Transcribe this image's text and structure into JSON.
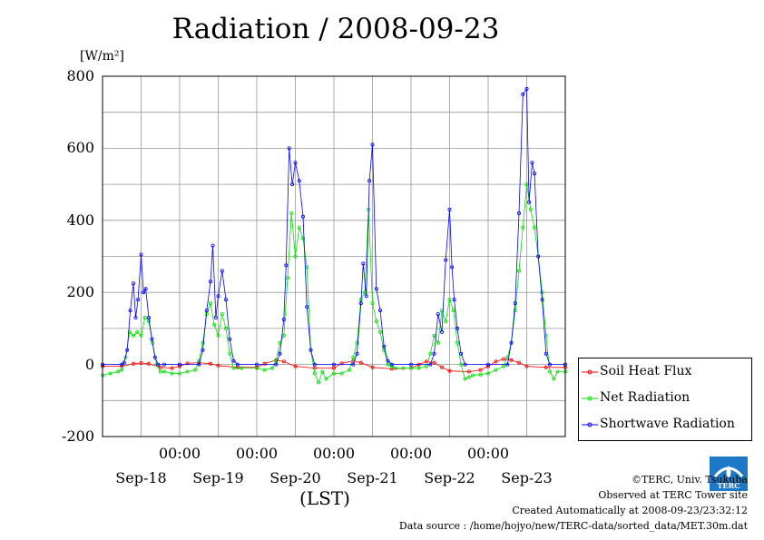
{
  "title": "Radiation / 2008-09-23",
  "y_unit": "[W/m²]",
  "x_unit": "(LST)",
  "footer": {
    "copyright": "©TERC, Univ. Tsukuba",
    "site": "Observed at TERC Tower site",
    "created": "Created Automatically at 2008-09-23/23:32:12",
    "source": "Data source : /home/hojyo/new/TERC-data/sorted_data/MET.30m.dat"
  },
  "logo_text": "TERC",
  "chart_data": {
    "type": "line",
    "title": "Radiation / 2008-09-23",
    "ylabel": "[W/m²]",
    "xlabel": "(LST)",
    "ylim": [
      -200,
      800
    ],
    "yticks": [
      -200,
      0,
      200,
      400,
      600,
      800
    ],
    "xlim_days": [
      17.5,
      23.5
    ],
    "x_tick_labels": [
      "00:00",
      "00:00",
      "00:00",
      "00:00",
      "00:00"
    ],
    "day_labels": [
      "Sep-18",
      "Sep-19",
      "Sep-20",
      "Sep-21",
      "Sep-22",
      "Sep-23"
    ],
    "grid": true,
    "legend_position": "right",
    "series": [
      {
        "name": "Soil Heat Flux",
        "color": "#ff0000",
        "values": [
          [
            17.5,
            -5
          ],
          [
            17.75,
            -5
          ],
          [
            17.9,
            2
          ],
          [
            18.0,
            4
          ],
          [
            18.1,
            2
          ],
          [
            18.25,
            -8
          ],
          [
            18.4,
            -10
          ],
          [
            18.5,
            -5
          ],
          [
            18.6,
            3
          ],
          [
            18.75,
            5
          ],
          [
            18.9,
            2
          ],
          [
            19.0,
            -3
          ],
          [
            19.25,
            -8
          ],
          [
            19.5,
            -8
          ],
          [
            19.6,
            2
          ],
          [
            19.75,
            12
          ],
          [
            19.85,
            8
          ],
          [
            20.0,
            -5
          ],
          [
            20.25,
            -10
          ],
          [
            20.5,
            -10
          ],
          [
            20.6,
            3
          ],
          [
            20.75,
            10
          ],
          [
            20.85,
            5
          ],
          [
            21.0,
            -8
          ],
          [
            21.25,
            -12
          ],
          [
            21.5,
            -10
          ],
          [
            21.6,
            0
          ],
          [
            21.7,
            8
          ],
          [
            21.8,
            5
          ],
          [
            21.9,
            -8
          ],
          [
            22.0,
            -18
          ],
          [
            22.25,
            -20
          ],
          [
            22.4,
            -15
          ],
          [
            22.5,
            -5
          ],
          [
            22.6,
            8
          ],
          [
            22.7,
            15
          ],
          [
            22.8,
            12
          ],
          [
            22.9,
            5
          ],
          [
            23.0,
            -5
          ],
          [
            23.25,
            -8
          ],
          [
            23.5,
            -8
          ]
        ]
      },
      {
        "name": "Net Radiation",
        "color": "#00e000",
        "values": [
          [
            17.5,
            -30
          ],
          [
            17.6,
            -25
          ],
          [
            17.7,
            -20
          ],
          [
            17.75,
            -15
          ],
          [
            17.8,
            20
          ],
          [
            17.85,
            90
          ],
          [
            17.9,
            80
          ],
          [
            17.95,
            90
          ],
          [
            18.0,
            80
          ],
          [
            18.05,
            130
          ],
          [
            18.1,
            120
          ],
          [
            18.15,
            60
          ],
          [
            18.2,
            0
          ],
          [
            18.25,
            -20
          ],
          [
            18.3,
            -20
          ],
          [
            18.4,
            -25
          ],
          [
            18.5,
            -25
          ],
          [
            18.6,
            -20
          ],
          [
            18.7,
            -15
          ],
          [
            18.75,
            10
          ],
          [
            18.8,
            60
          ],
          [
            18.85,
            140
          ],
          [
            18.9,
            170
          ],
          [
            18.95,
            110
          ],
          [
            19.0,
            80
          ],
          [
            19.05,
            140
          ],
          [
            19.1,
            100
          ],
          [
            19.15,
            30
          ],
          [
            19.2,
            -10
          ],
          [
            19.3,
            -10
          ],
          [
            19.5,
            -10
          ],
          [
            19.6,
            -15
          ],
          [
            19.7,
            -10
          ],
          [
            19.75,
            10
          ],
          [
            19.8,
            60
          ],
          [
            19.85,
            80
          ],
          [
            19.9,
            240
          ],
          [
            19.95,
            420
          ],
          [
            20.0,
            300
          ],
          [
            20.05,
            380
          ],
          [
            20.1,
            350
          ],
          [
            20.15,
            270
          ],
          [
            20.2,
            40
          ],
          [
            20.25,
            -25
          ],
          [
            20.3,
            -50
          ],
          [
            20.35,
            -20
          ],
          [
            20.4,
            -40
          ],
          [
            20.5,
            -25
          ],
          [
            20.6,
            -25
          ],
          [
            20.7,
            -15
          ],
          [
            20.75,
            20
          ],
          [
            20.8,
            60
          ],
          [
            20.85,
            180
          ],
          [
            20.9,
            200
          ],
          [
            20.95,
            430
          ],
          [
            21.0,
            170
          ],
          [
            21.05,
            120
          ],
          [
            21.1,
            90
          ],
          [
            21.15,
            40
          ],
          [
            21.2,
            0
          ],
          [
            21.25,
            -5
          ],
          [
            21.3,
            -10
          ],
          [
            21.4,
            -10
          ],
          [
            21.5,
            -10
          ],
          [
            21.6,
            -10
          ],
          [
            21.7,
            -5
          ],
          [
            21.75,
            30
          ],
          [
            21.8,
            80
          ],
          [
            21.85,
            60
          ],
          [
            21.9,
            150
          ],
          [
            21.95,
            120
          ],
          [
            22.0,
            180
          ],
          [
            22.05,
            150
          ],
          [
            22.1,
            60
          ],
          [
            22.15,
            0
          ],
          [
            22.2,
            -40
          ],
          [
            22.25,
            -35
          ],
          [
            22.3,
            -30
          ],
          [
            22.4,
            -28
          ],
          [
            22.5,
            -25
          ],
          [
            22.6,
            -15
          ],
          [
            22.7,
            -5
          ],
          [
            22.75,
            20
          ],
          [
            22.8,
            60
          ],
          [
            22.85,
            150
          ],
          [
            22.9,
            260
          ],
          [
            22.95,
            380
          ],
          [
            23.0,
            500
          ],
          [
            23.05,
            430
          ],
          [
            23.1,
            380
          ],
          [
            23.15,
            300
          ],
          [
            23.2,
            200
          ],
          [
            23.25,
            80
          ],
          [
            23.3,
            -20
          ],
          [
            23.35,
            -40
          ],
          [
            23.4,
            -20
          ],
          [
            23.5,
            -20
          ]
        ]
      },
      {
        "name": "Shortwave Radiation",
        "color": "#0000ff",
        "values": [
          [
            17.5,
            0
          ],
          [
            17.75,
            0
          ],
          [
            17.78,
            5
          ],
          [
            17.82,
            40
          ],
          [
            17.86,
            150
          ],
          [
            17.9,
            225
          ],
          [
            17.93,
            130
          ],
          [
            17.96,
            180
          ],
          [
            18.0,
            305
          ],
          [
            18.03,
            200
          ],
          [
            18.06,
            210
          ],
          [
            18.1,
            130
          ],
          [
            18.14,
            70
          ],
          [
            18.18,
            20
          ],
          [
            18.22,
            0
          ],
          [
            18.3,
            0
          ],
          [
            18.5,
            0
          ],
          [
            18.75,
            0
          ],
          [
            18.8,
            40
          ],
          [
            18.85,
            150
          ],
          [
            18.9,
            230
          ],
          [
            18.93,
            330
          ],
          [
            18.97,
            130
          ],
          [
            19.0,
            190
          ],
          [
            19.05,
            260
          ],
          [
            19.1,
            180
          ],
          [
            19.15,
            70
          ],
          [
            19.2,
            10
          ],
          [
            19.25,
            0
          ],
          [
            19.5,
            0
          ],
          [
            19.75,
            0
          ],
          [
            19.8,
            30
          ],
          [
            19.85,
            125
          ],
          [
            19.88,
            275
          ],
          [
            19.92,
            600
          ],
          [
            19.96,
            500
          ],
          [
            20.0,
            560
          ],
          [
            20.05,
            510
          ],
          [
            20.1,
            410
          ],
          [
            20.15,
            160
          ],
          [
            20.2,
            40
          ],
          [
            20.25,
            0
          ],
          [
            20.5,
            0
          ],
          [
            20.75,
            0
          ],
          [
            20.8,
            30
          ],
          [
            20.85,
            170
          ],
          [
            20.88,
            280
          ],
          [
            20.92,
            190
          ],
          [
            20.96,
            510
          ],
          [
            21.0,
            610
          ],
          [
            21.05,
            210
          ],
          [
            21.1,
            150
          ],
          [
            21.15,
            50
          ],
          [
            21.2,
            10
          ],
          [
            21.25,
            0
          ],
          [
            21.5,
            0
          ],
          [
            21.75,
            0
          ],
          [
            21.8,
            30
          ],
          [
            21.85,
            140
          ],
          [
            21.9,
            90
          ],
          [
            21.95,
            290
          ],
          [
            22.0,
            430
          ],
          [
            22.03,
            270
          ],
          [
            22.06,
            180
          ],
          [
            22.1,
            100
          ],
          [
            22.15,
            30
          ],
          [
            22.2,
            0
          ],
          [
            22.5,
            0
          ],
          [
            22.75,
            0
          ],
          [
            22.8,
            60
          ],
          [
            22.85,
            170
          ],
          [
            22.9,
            420
          ],
          [
            22.95,
            750
          ],
          [
            23.0,
            765
          ],
          [
            23.03,
            450
          ],
          [
            23.07,
            560
          ],
          [
            23.1,
            530
          ],
          [
            23.15,
            300
          ],
          [
            23.2,
            180
          ],
          [
            23.25,
            30
          ],
          [
            23.3,
            0
          ],
          [
            23.5,
            0
          ]
        ]
      }
    ]
  }
}
